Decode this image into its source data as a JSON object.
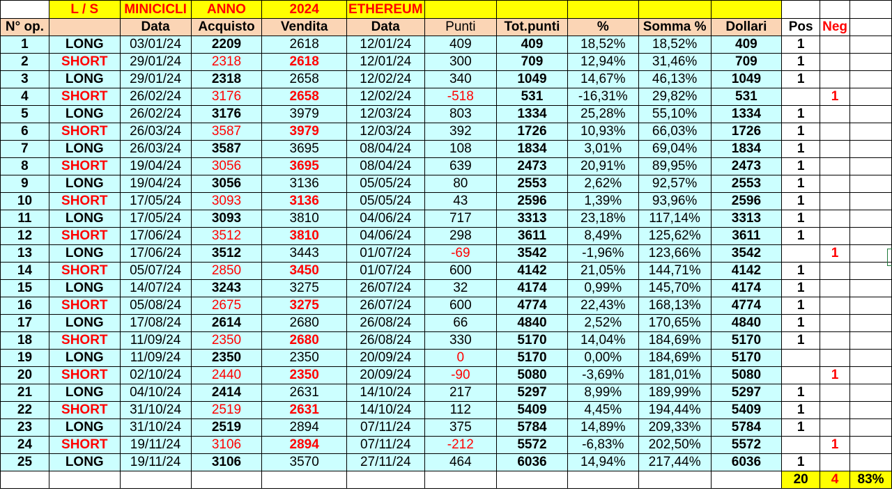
{
  "top_row": {
    "ls": "L / S",
    "minicicli": "MINICICLI",
    "anno": "ANNO",
    "year": "2024",
    "asset": "ETHEREUM"
  },
  "headers": {
    "op": "N° op.",
    "data": "Data",
    "acquisto": "Acquisto",
    "vendita": "Vendita",
    "data2": "Data",
    "punti": "Punti",
    "totpunti": "Tot.punti",
    "perc": "%",
    "somma": "Somma %",
    "dollari": "Dollari",
    "pos": "Pos",
    "neg": "Neg"
  },
  "rows": [
    {
      "n": "1",
      "side": "LONG",
      "d1": "03/01/24",
      "buy": "2209",
      "sell": "2618",
      "d2": "12/01/24",
      "pts": "409",
      "tot": "409",
      "pct": "18,52%",
      "sum": "18,52%",
      "usd": "409",
      "pos": "1",
      "neg": ""
    },
    {
      "n": "2",
      "side": "SHORT",
      "d1": "29/01/24",
      "buy": "2318",
      "sell": "2618",
      "d2": "12/01/24",
      "pts": "300",
      "tot": "709",
      "pct": "12,94%",
      "sum": "31,46%",
      "usd": "709",
      "pos": "1",
      "neg": ""
    },
    {
      "n": "3",
      "side": "LONG",
      "d1": "29/01/24",
      "buy": "2318",
      "sell": "2658",
      "d2": "12/02/24",
      "pts": "340",
      "tot": "1049",
      "pct": "14,67%",
      "sum": "46,13%",
      "usd": "1049",
      "pos": "1",
      "neg": ""
    },
    {
      "n": "4",
      "side": "SHORT",
      "d1": "26/02/24",
      "buy": "3176",
      "sell": "2658",
      "d2": "12/02/24",
      "pts": "-518",
      "tot": "531",
      "pct": "-16,31%",
      "sum": "29,82%",
      "usd": "531",
      "pos": "",
      "neg": "1"
    },
    {
      "n": "5",
      "side": "LONG",
      "d1": "26/02/24",
      "buy": "3176",
      "sell": "3979",
      "d2": "12/03/24",
      "pts": "803",
      "tot": "1334",
      "pct": "25,28%",
      "sum": "55,10%",
      "usd": "1334",
      "pos": "1",
      "neg": ""
    },
    {
      "n": "6",
      "side": "SHORT",
      "d1": "26/03/24",
      "buy": "3587",
      "sell": "3979",
      "d2": "12/03/24",
      "pts": "392",
      "tot": "1726",
      "pct": "10,93%",
      "sum": "66,03%",
      "usd": "1726",
      "pos": "1",
      "neg": ""
    },
    {
      "n": "7",
      "side": "LONG",
      "d1": "26/03/24",
      "buy": "3587",
      "sell": "3695",
      "d2": "08/04/24",
      "pts": "108",
      "tot": "1834",
      "pct": "3,01%",
      "sum": "69,04%",
      "usd": "1834",
      "pos": "1",
      "neg": ""
    },
    {
      "n": "8",
      "side": "SHORT",
      "d1": "19/04/24",
      "buy": "3056",
      "sell": "3695",
      "d2": "08/04/24",
      "pts": "639",
      "tot": "2473",
      "pct": "20,91%",
      "sum": "89,95%",
      "usd": "2473",
      "pos": "1",
      "neg": ""
    },
    {
      "n": "9",
      "side": "LONG",
      "d1": "19/04/24",
      "buy": "3056",
      "sell": "3136",
      "d2": "05/05/24",
      "pts": "80",
      "tot": "2553",
      "pct": "2,62%",
      "sum": "92,57%",
      "usd": "2553",
      "pos": "1",
      "neg": ""
    },
    {
      "n": "10",
      "side": "SHORT",
      "d1": "17/05/24",
      "buy": "3093",
      "sell": "3136",
      "d2": "05/05/24",
      "pts": "43",
      "tot": "2596",
      "pct": "1,39%",
      "sum": "93,96%",
      "usd": "2596",
      "pos": "1",
      "neg": ""
    },
    {
      "n": "11",
      "side": "LONG",
      "d1": "17/05/24",
      "buy": "3093",
      "sell": "3810",
      "d2": "04/06/24",
      "pts": "717",
      "tot": "3313",
      "pct": "23,18%",
      "sum": "117,14%",
      "usd": "3313",
      "pos": "1",
      "neg": ""
    },
    {
      "n": "12",
      "side": "SHORT",
      "d1": "17/06/24",
      "buy": "3512",
      "sell": "3810",
      "d2": "04/06/24",
      "pts": "298",
      "tot": "3611",
      "pct": "8,49%",
      "sum": "125,62%",
      "usd": "3611",
      "pos": "1",
      "neg": ""
    },
    {
      "n": "13",
      "side": "LONG",
      "d1": "17/06/24",
      "buy": "3512",
      "sell": "3443",
      "d2": "01/07/24",
      "pts": "-69",
      "tot": "3542",
      "pct": "-1,96%",
      "sum": "123,66%",
      "usd": "3542",
      "pos": "",
      "neg": "1"
    },
    {
      "n": "14",
      "side": "SHORT",
      "d1": "05/07/24",
      "buy": "2850",
      "sell": "3450",
      "d2": "01/07/24",
      "pts": "600",
      "tot": "4142",
      "pct": "21,05%",
      "sum": "144,71%",
      "usd": "4142",
      "pos": "1",
      "neg": ""
    },
    {
      "n": "15",
      "side": "LONG",
      "d1": "14/07/24",
      "buy": "3243",
      "sell": "3275",
      "d2": "26/07/24",
      "pts": "32",
      "tot": "4174",
      "pct": "0,99%",
      "sum": "145,70%",
      "usd": "4174",
      "pos": "1",
      "neg": ""
    },
    {
      "n": "16",
      "side": "SHORT",
      "d1": "05/08/24",
      "buy": "2675",
      "sell": "3275",
      "d2": "26/07/24",
      "pts": "600",
      "tot": "4774",
      "pct": "22,43%",
      "sum": "168,13%",
      "usd": "4774",
      "pos": "1",
      "neg": ""
    },
    {
      "n": "17",
      "side": "LONG",
      "d1": "17/08/24",
      "buy": "2614",
      "sell": "2680",
      "d2": "26/08/24",
      "pts": "66",
      "tot": "4840",
      "pct": "2,52%",
      "sum": "170,65%",
      "usd": "4840",
      "pos": "1",
      "neg": ""
    },
    {
      "n": "18",
      "side": "SHORT",
      "d1": "11/09/24",
      "buy": "2350",
      "sell": "2680",
      "d2": "26/08/24",
      "pts": "330",
      "tot": "5170",
      "pct": "14,04%",
      "sum": "184,69%",
      "usd": "5170",
      "pos": "1",
      "neg": ""
    },
    {
      "n": "19",
      "side": "LONG",
      "d1": "11/09/24",
      "buy": "2350",
      "sell": "2350",
      "d2": "20/09/24",
      "pts": "0",
      "tot": "5170",
      "pct": "0,00%",
      "sum": "184,69%",
      "usd": "5170",
      "pos": "",
      "neg": ""
    },
    {
      "n": "20",
      "side": "SHORT",
      "d1": "02/10/24",
      "buy": "2440",
      "sell": "2350",
      "d2": "20/09/24",
      "pts": "-90",
      "tot": "5080",
      "pct": "-3,69%",
      "sum": "181,01%",
      "usd": "5080",
      "pos": "",
      "neg": "1"
    },
    {
      "n": "21",
      "side": "LONG",
      "d1": "04/10/24",
      "buy": "2414",
      "sell": "2631",
      "d2": "14/10/24",
      "pts": "217",
      "tot": "5297",
      "pct": "8,99%",
      "sum": "189,99%",
      "usd": "5297",
      "pos": "1",
      "neg": ""
    },
    {
      "n": "22",
      "side": "SHORT",
      "d1": "31/10/24",
      "buy": "2519",
      "sell": "2631",
      "d2": "14/10/24",
      "pts": "112",
      "tot": "5409",
      "pct": "4,45%",
      "sum": "194,44%",
      "usd": "5409",
      "pos": "1",
      "neg": ""
    },
    {
      "n": "23",
      "side": "LONG",
      "d1": "31/10/24",
      "buy": "2519",
      "sell": "2894",
      "d2": "07/11/24",
      "pts": "375",
      "tot": "5784",
      "pct": "14,89%",
      "sum": "209,33%",
      "usd": "5784",
      "pos": "1",
      "neg": ""
    },
    {
      "n": "24",
      "side": "SHORT",
      "d1": "19/11/24",
      "buy": "3106",
      "sell": "2894",
      "d2": "07/11/24",
      "pts": "-212",
      "tot": "5572",
      "pct": "-6,83%",
      "sum": "202,50%",
      "usd": "5572",
      "pos": "",
      "neg": "1"
    },
    {
      "n": "25",
      "side": "LONG",
      "d1": "19/11/24",
      "buy": "3106",
      "sell": "3570",
      "d2": "27/11/24",
      "pts": "464",
      "tot": "6036",
      "pct": "14,94%",
      "sum": "217,44%",
      "usd": "6036",
      "pos": "1",
      "neg": ""
    }
  ],
  "totals": {
    "pos": "20",
    "neg": "4",
    "ratio": "83%"
  },
  "colors": {
    "yellow": "#ffff00",
    "orange": "#fbd5b5",
    "cyan": "#ccffff",
    "red": "#ff0000"
  }
}
